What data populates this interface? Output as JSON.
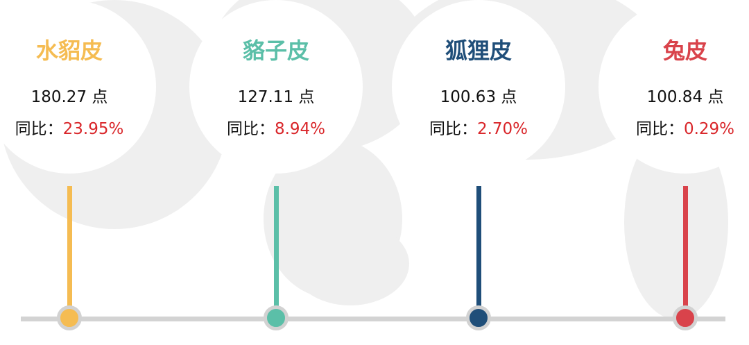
{
  "items": [
    {
      "name": "水貂皮",
      "value": "180.27 点",
      "yoy_label": "同比：",
      "yoy": "23.95%",
      "color": "#f5bc52"
    },
    {
      "name": "貉子皮",
      "value": "127.11 点",
      "yoy_label": "同比：",
      "yoy": "8.94%",
      "color": "#5bbfa8"
    },
    {
      "name": "狐狸皮",
      "value": "100.63 点",
      "yoy_label": "同比：",
      "yoy": "2.70%",
      "color": "#1f4e79"
    },
    {
      "name": "兔皮",
      "value": "100.84 点",
      "yoy_label": "同比：",
      "yoy": "0.29%",
      "color": "#d9434b"
    }
  ],
  "yoy_color": "#d9262a",
  "axis_color": "#d3d3d3"
}
